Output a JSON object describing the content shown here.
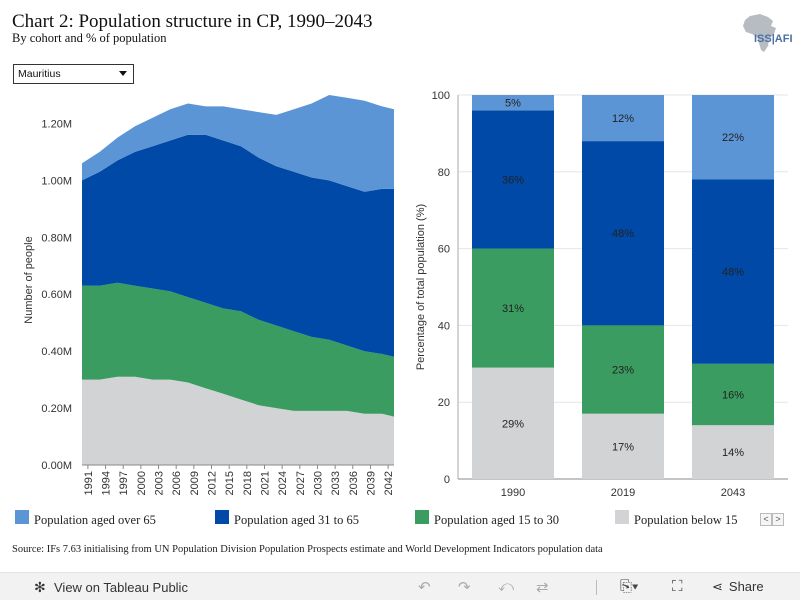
{
  "header": {
    "title": "Chart 2: Population structure in CP, 1990–2043",
    "subtitle": "By cohort and % of population",
    "logo_text": "ISS|AFI"
  },
  "country_select": {
    "value": "Mauritius"
  },
  "colors": {
    "over65": "#5b95d5",
    "aged31to65": "#0049a6",
    "aged15to30": "#3a9c60",
    "below15": "#d2d3d5"
  },
  "chart_data": [
    {
      "type": "area",
      "stacked": true,
      "xlabel": "",
      "ylabel": "Number of people",
      "ylim": [
        0,
        1.3
      ],
      "y_ticks": [
        "0.00M",
        "0.20M",
        "0.40M",
        "0.60M",
        "0.80M",
        "1.00M",
        "1.20M"
      ],
      "x_ticks": [
        "1991",
        "1994",
        "1997",
        "2000",
        "2003",
        "2006",
        "2009",
        "2012",
        "2015",
        "2018",
        "2021",
        "2024",
        "2027",
        "2030",
        "2033",
        "2036",
        "2039",
        "2042"
      ],
      "x": [
        1990,
        1993,
        1996,
        1999,
        2002,
        2005,
        2008,
        2011,
        2014,
        2017,
        2020,
        2023,
        2026,
        2029,
        2032,
        2035,
        2038,
        2041,
        2043
      ],
      "series": [
        {
          "name": "Population below 15",
          "values": [
            0.3,
            0.3,
            0.31,
            0.31,
            0.3,
            0.3,
            0.29,
            0.27,
            0.25,
            0.23,
            0.21,
            0.2,
            0.19,
            0.19,
            0.19,
            0.19,
            0.18,
            0.18,
            0.17
          ]
        },
        {
          "name": "Population aged 15 to 30",
          "values": [
            0.33,
            0.33,
            0.33,
            0.32,
            0.32,
            0.31,
            0.3,
            0.3,
            0.3,
            0.31,
            0.3,
            0.29,
            0.28,
            0.26,
            0.25,
            0.23,
            0.22,
            0.21,
            0.21
          ]
        },
        {
          "name": "Population aged 31 to 65",
          "values": [
            0.37,
            0.4,
            0.43,
            0.47,
            0.5,
            0.53,
            0.57,
            0.59,
            0.59,
            0.58,
            0.57,
            0.56,
            0.56,
            0.56,
            0.56,
            0.56,
            0.56,
            0.58,
            0.59
          ]
        },
        {
          "name": "Population aged over 65",
          "values": [
            0.06,
            0.07,
            0.08,
            0.09,
            0.1,
            0.11,
            0.11,
            0.1,
            0.12,
            0.13,
            0.16,
            0.18,
            0.22,
            0.26,
            0.3,
            0.31,
            0.32,
            0.29,
            0.28
          ]
        }
      ]
    },
    {
      "type": "bar",
      "stacked": true,
      "xlabel": "",
      "ylabel": "Percentage of total population (%)",
      "ylim": [
        0,
        100
      ],
      "y_ticks": [
        0,
        20,
        40,
        60,
        80,
        100
      ],
      "categories": [
        "1990",
        "2019",
        "2043"
      ],
      "series": [
        {
          "name": "Population below 15",
          "values": [
            29,
            17,
            14
          ],
          "labels": [
            "29%",
            "17%",
            "14%"
          ]
        },
        {
          "name": "Population aged 15 to 30",
          "values": [
            31,
            23,
            16
          ],
          "labels": [
            "31%",
            "23%",
            "16%"
          ]
        },
        {
          "name": "Population aged 31 to 65",
          "values": [
            36,
            48,
            48
          ],
          "labels": [
            "36%",
            "48%",
            "48%"
          ]
        },
        {
          "name": "Population aged over 65",
          "values": [
            5,
            12,
            22
          ],
          "labels": [
            "5%",
            "12%",
            "22%"
          ]
        }
      ]
    }
  ],
  "legend": {
    "items": [
      {
        "label": "Population aged over 65",
        "color": "#5b95d5"
      },
      {
        "label": "Population aged 31 to 65",
        "color": "#0049a6"
      },
      {
        "label": "Population aged 15 to 30",
        "color": "#3a9c60"
      },
      {
        "label": "Population below 15",
        "color": "#d2d3d5"
      }
    ],
    "prev": "<",
    "next": ">"
  },
  "source": "Source: IFs 7.63 initialising from UN Population Division Population Prospects estimate and World Development Indicators population data",
  "toolbar": {
    "view_label": "View on Tableau Public",
    "share_label": "Share",
    "icons": [
      "undo-icon",
      "redo-icon",
      "revert-icon",
      "refresh-icon",
      "download-icon",
      "fullscreen-icon",
      "share-icon"
    ]
  }
}
